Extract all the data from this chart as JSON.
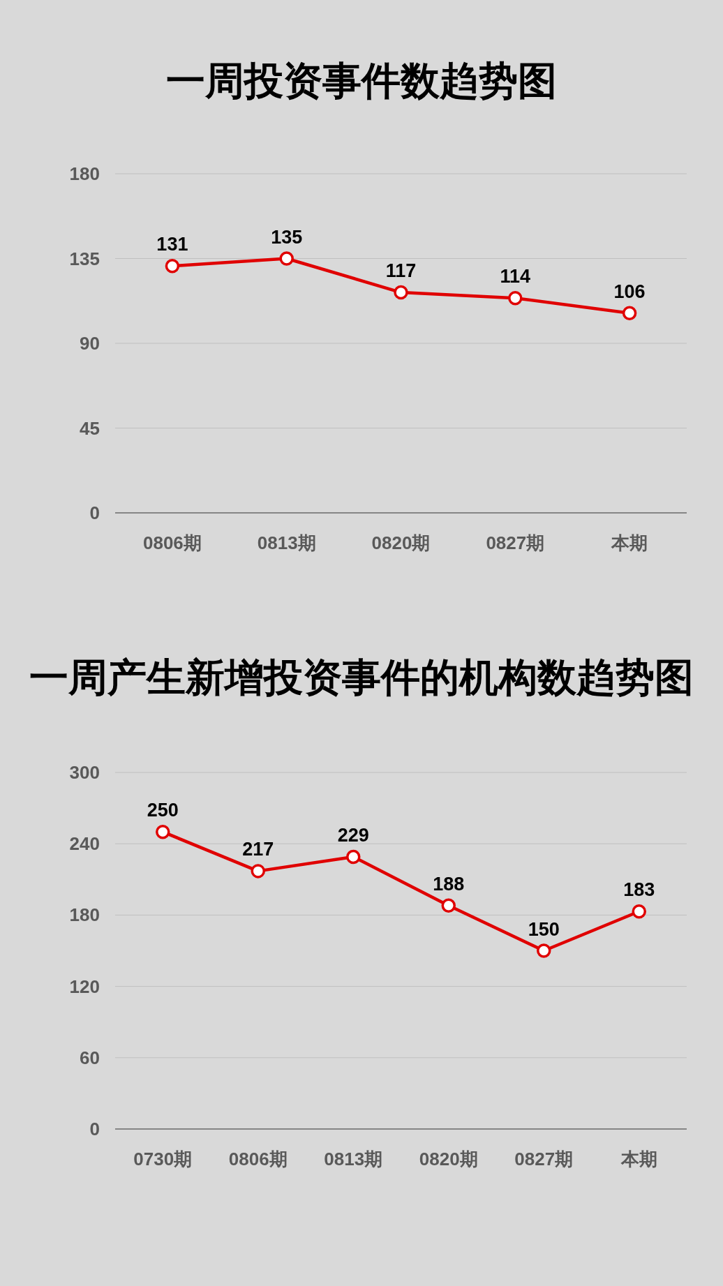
{
  "chart_data": [
    {
      "type": "line",
      "title": "一周投资事件数趋势图",
      "categories": [
        "0806期",
        "0813期",
        "0820期",
        "0827期",
        "本期"
      ],
      "series": [
        {
          "color": "#e00000",
          "values": [
            131,
            135,
            117,
            114,
            106
          ]
        }
      ],
      "ylim": [
        0,
        180
      ],
      "yticks": [
        0,
        45,
        90,
        135,
        180
      ],
      "grid": "y",
      "data_labels": true,
      "marker": "circle"
    },
    {
      "type": "line",
      "title": "一周产生新增投资事件的机构数趋势图",
      "categories": [
        "0730期",
        "0806期",
        "0813期",
        "0820期",
        "0827期",
        "本期"
      ],
      "series": [
        {
          "color": "#e00000",
          "values": [
            250,
            217,
            229,
            188,
            150,
            183
          ]
        }
      ],
      "ylim": [
        0,
        300
      ],
      "yticks": [
        0,
        60,
        120,
        180,
        240,
        300
      ],
      "grid": "y",
      "data_labels": true,
      "marker": "circle"
    }
  ]
}
